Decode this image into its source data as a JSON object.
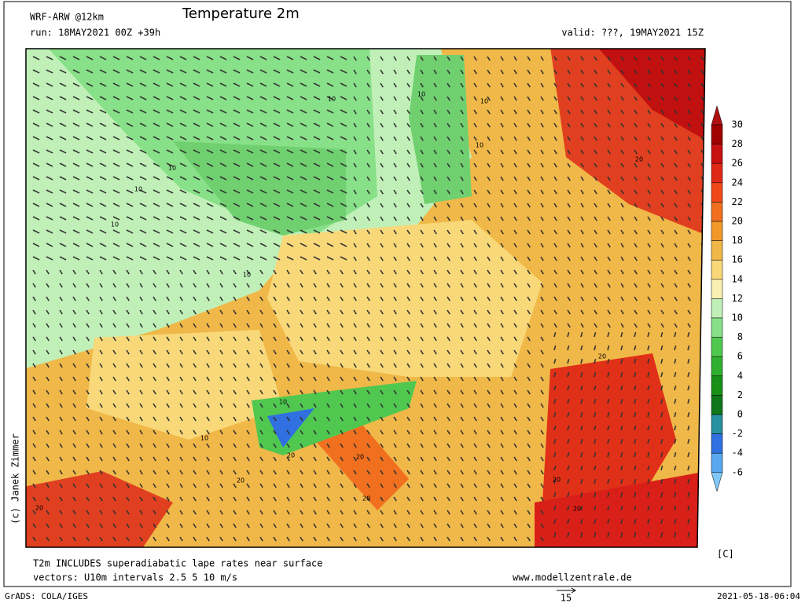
{
  "header": {
    "model": "WRF-ARW @12km",
    "title": "Temperature 2m",
    "run": "run: 18MAY2021 00Z +39h",
    "valid": "valid: ???, 19MAY2021 15Z"
  },
  "map": {
    "contour_labels": [
      "10",
      "10",
      "10",
      "10",
      "10",
      "10",
      "10",
      "10",
      "10",
      "10",
      "20",
      "20",
      "20",
      "20",
      "20",
      "20",
      "20",
      "20",
      "20"
    ]
  },
  "colorbar": {
    "levels": [
      30,
      28,
      26,
      24,
      22,
      20,
      18,
      16,
      14,
      12,
      10,
      8,
      6,
      4,
      2,
      0,
      -2,
      -4,
      -6
    ],
    "colors": [
      "#b01010",
      "#a00000",
      "#c81010",
      "#e02818",
      "#f04818",
      "#f07020",
      "#f09828",
      "#f0b848",
      "#f8d878",
      "#f8f0b0",
      "#c0f0b8",
      "#88e088",
      "#50c850",
      "#30b030",
      "#189018",
      "#107818",
      "#2890a0",
      "#3070e0",
      "#58a8f0",
      "#80c8f8"
    ],
    "unit": "[C]"
  },
  "footer": {
    "note": "T2m INCLUDES superadiabatic lape rates near surface",
    "vectors": "vectors: U10m intervals 2.5 5 10 m/s",
    "website": "www.modellzentrale.de",
    "grads": "GrADS: COLA/IGES",
    "vector_scale": "15",
    "timestamp": "2021-05-18-06:04",
    "copyright": "(c) Janek Zimmer"
  }
}
